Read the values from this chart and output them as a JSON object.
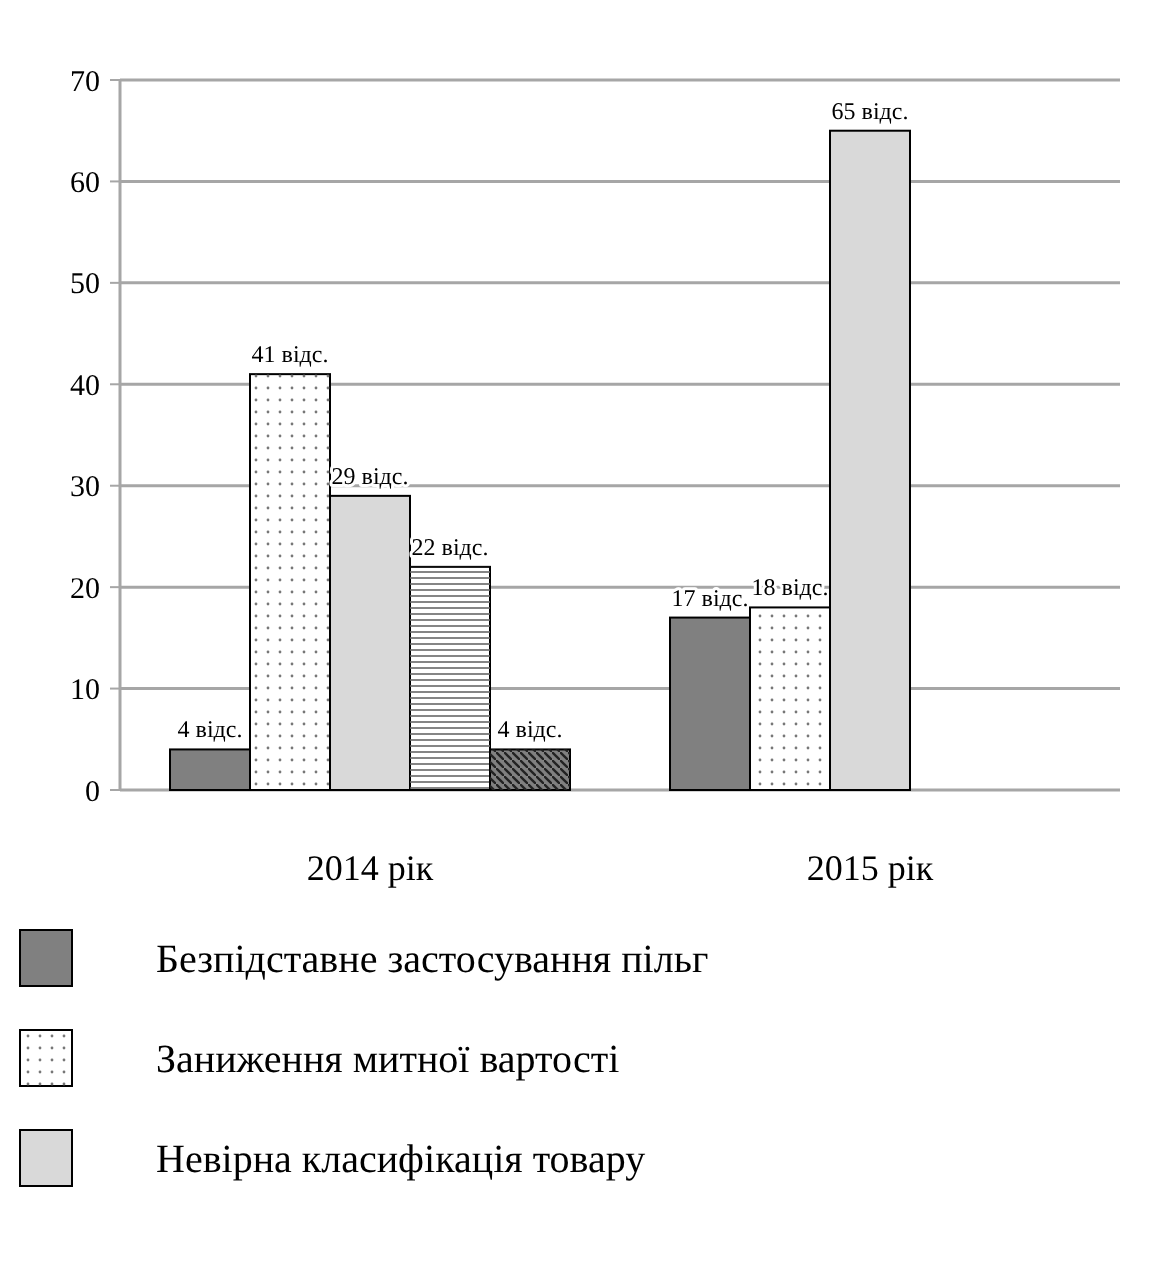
{
  "chart_data": {
    "type": "bar",
    "categories": [
      "2014 рік",
      "2015 рік"
    ],
    "series": [
      {
        "name": "Безпідставне застосування пільг",
        "color": "#808080",
        "values": [
          4,
          17
        ],
        "value_labels": [
          "4 відс.",
          "17 відс."
        ]
      },
      {
        "name": "Заниження митної вартості",
        "color": "#ffffff",
        "values": [
          41,
          18
        ],
        "value_labels": [
          "41 відс.",
          "18 відс."
        ]
      },
      {
        "name": "Невірна класифікація товару",
        "color": "#d9d9d9",
        "values": [
          29,
          65
        ],
        "value_labels": [
          "29 відс.",
          "65  відс."
        ]
      },
      {
        "color": "#ffffff",
        "values": [
          22,
          null
        ],
        "value_labels": [
          "22 відс.",
          null
        ]
      },
      {
        "color": "#808080",
        "values": [
          4,
          null
        ],
        "value_labels": [
          "4 відс.",
          null
        ]
      }
    ],
    "ylim": [
      0,
      70
    ],
    "yticks": [
      0,
      10,
      20,
      30,
      40,
      50,
      60,
      70
    ],
    "grid": "y",
    "legend": "bottom"
  }
}
